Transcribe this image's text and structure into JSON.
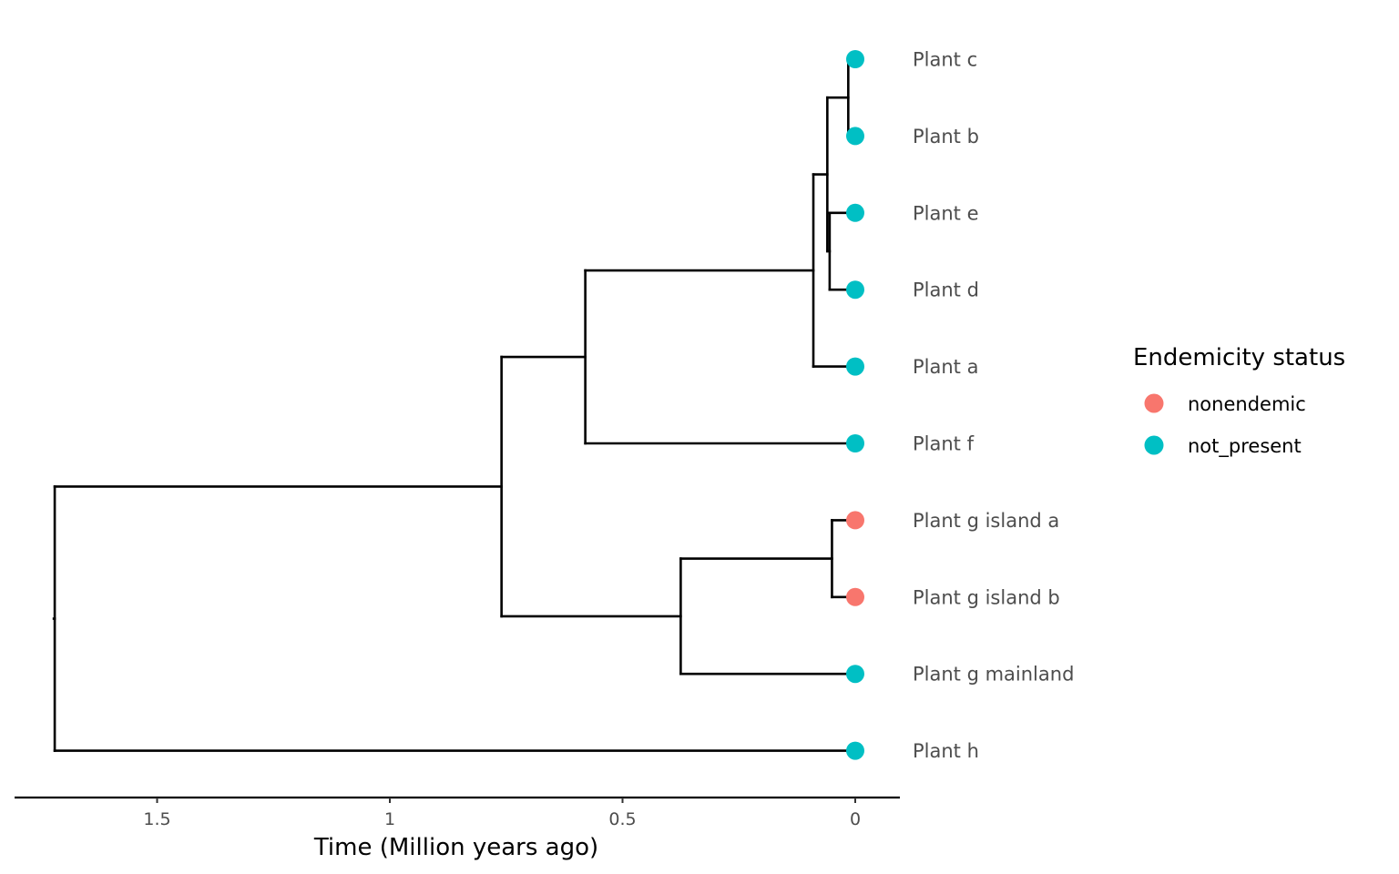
{
  "chart_data": {
    "type": "phylogenetic-tree",
    "x_axis": {
      "title": "Time (Million years ago)",
      "reversed": true,
      "ticks": [
        {
          "value": 1.5,
          "label": "1.5"
        },
        {
          "value": 1.0,
          "label": "1"
        },
        {
          "value": 0.5,
          "label": "0.5"
        },
        {
          "value": 0.0,
          "label": "0"
        }
      ],
      "range": [
        1.81,
        -0.095
      ]
    },
    "status_colors": {
      "nonendemic": "#F8766D",
      "not_present": "#00BFC4"
    },
    "legend": {
      "title": "Endemicity status",
      "placement": "right",
      "items": [
        {
          "status": "nonendemic",
          "label": "nonendemic"
        },
        {
          "status": "not_present",
          "label": "not_present"
        }
      ]
    },
    "tips": [
      {
        "id": "c",
        "label": "Plant c",
        "status": "not_present"
      },
      {
        "id": "b",
        "label": "Plant b",
        "status": "not_present"
      },
      {
        "id": "e",
        "label": "Plant e",
        "status": "not_present"
      },
      {
        "id": "d",
        "label": "Plant d",
        "status": "not_present"
      },
      {
        "id": "a",
        "label": "Plant a",
        "status": "not_present"
      },
      {
        "id": "f",
        "label": "Plant f",
        "status": "not_present"
      },
      {
        "id": "gia",
        "label": "Plant g island a",
        "status": "nonendemic"
      },
      {
        "id": "gib",
        "label": "Plant g island b",
        "status": "nonendemic"
      },
      {
        "id": "gm",
        "label": "Plant g mainland",
        "status": "not_present"
      },
      {
        "id": "h",
        "label": "Plant h",
        "status": "not_present"
      }
    ],
    "tree": {
      "age": 1.72,
      "children": [
        {
          "age": 0.76,
          "children": [
            {
              "age": 0.58,
              "children": [
                {
                  "age": 0.09,
                  "children": [
                    {
                      "age": 0.06,
                      "children": [
                        {
                          "age": 0.015,
                          "children": [
                            {
                              "tip": "c"
                            },
                            {
                              "tip": "b"
                            }
                          ]
                        },
                        {
                          "age": 0.055,
                          "children": [
                            {
                              "tip": "e"
                            },
                            {
                              "tip": "d"
                            }
                          ]
                        }
                      ]
                    },
                    {
                      "tip": "a"
                    }
                  ]
                },
                {
                  "tip": "f"
                }
              ]
            },
            {
              "age": 0.375,
              "children": [
                {
                  "age": 0.05,
                  "children": [
                    {
                      "tip": "gia"
                    },
                    {
                      "tip": "gib"
                    }
                  ]
                },
                {
                  "tip": "gm"
                }
              ]
            }
          ]
        },
        {
          "tip": "h"
        }
      ]
    }
  }
}
